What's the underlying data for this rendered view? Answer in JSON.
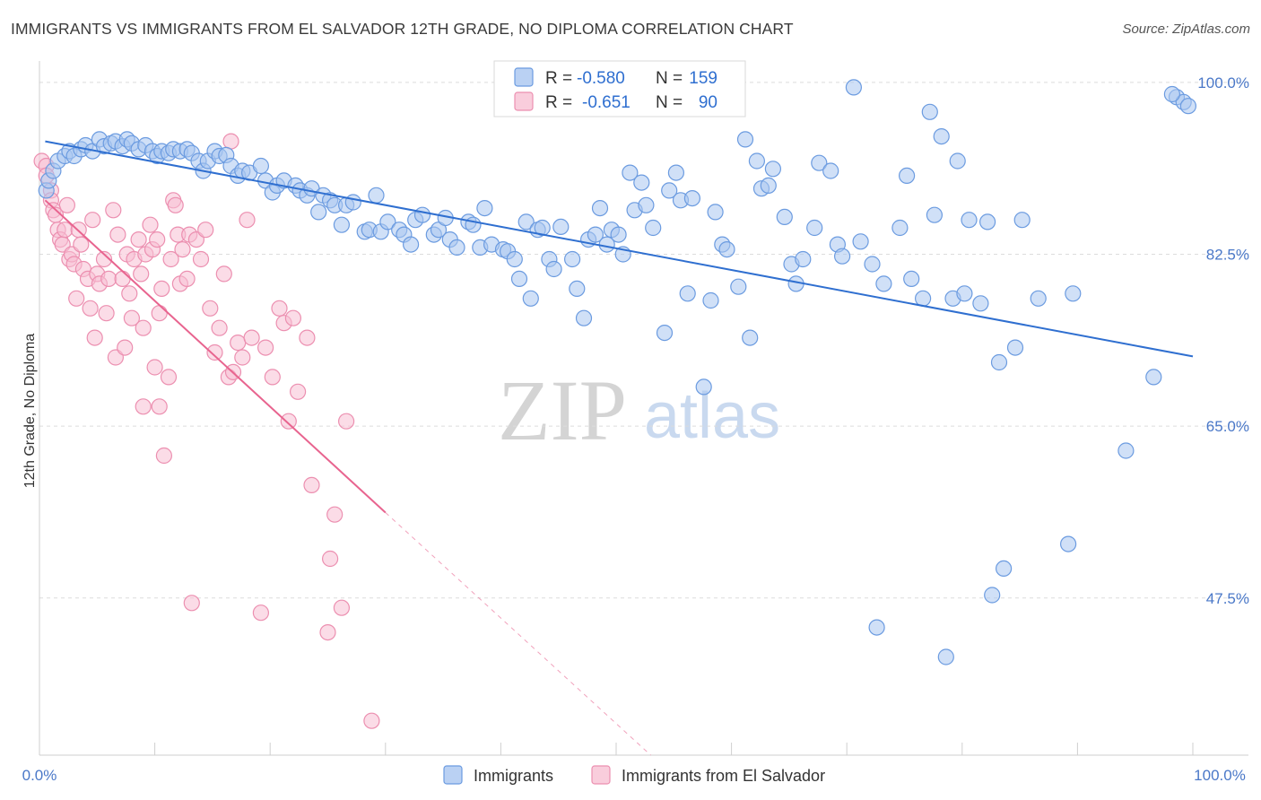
{
  "header": {
    "title": "IMMIGRANTS VS IMMIGRANTS FROM EL SALVADOR 12TH GRADE, NO DIPLOMA CORRELATION CHART",
    "source": "Source: ZipAtlas.com"
  },
  "watermark": {
    "zip": "ZIP",
    "atlas": "atlas"
  },
  "legend": {
    "r_label": "R =",
    "n_label": "N =",
    "rows": [
      {
        "r": "-0.580",
        "n": "159"
      },
      {
        "r": "-0.651",
        "n": "90"
      }
    ]
  },
  "colors": {
    "blue_fill": "#a9c6f0",
    "blue_stroke": "#6b9be0",
    "blue_line": "#2f6fd0",
    "pink_fill": "#f7c0d3",
    "pink_stroke": "#ec8fb0",
    "pink_line": "#e8648f",
    "tick_text": "#4a78c8",
    "grid": "#dcdcdc"
  },
  "chart_data": {
    "type": "scatter",
    "title": "IMMIGRANTS VS IMMIGRANTS FROM EL SALVADOR 12TH GRADE, NO DIPLOMA CORRELATION CHART",
    "xlabel": "",
    "ylabel": "12th Grade, No Diploma",
    "xlim": [
      0,
      100
    ],
    "ylim": [
      31.5,
      102
    ],
    "x_tick_labels": [
      "0.0%",
      "100.0%"
    ],
    "y_ticks": [
      47.5,
      65.0,
      82.5,
      100.0
    ],
    "y_tick_labels": [
      "47.5%",
      "65.0%",
      "82.5%",
      "100.0%"
    ],
    "grid": true,
    "legend_placement": "top-center",
    "series": [
      {
        "name": "Immigrants",
        "r": -0.58,
        "n": 159,
        "trend": {
          "x": [
            0.5,
            100
          ],
          "y": [
            94.0,
            72.1
          ]
        },
        "points": [
          [
            0.6,
            89.0
          ],
          [
            0.8,
            90.0
          ],
          [
            1.2,
            91.0
          ],
          [
            1.6,
            92.0
          ],
          [
            2.2,
            92.5
          ],
          [
            2.6,
            93.0
          ],
          [
            3.0,
            92.5
          ],
          [
            3.6,
            93.2
          ],
          [
            4.0,
            93.6
          ],
          [
            4.6,
            93.0
          ],
          [
            5.2,
            94.2
          ],
          [
            5.6,
            93.5
          ],
          [
            6.2,
            93.8
          ],
          [
            6.6,
            94.0
          ],
          [
            7.2,
            93.5
          ],
          [
            7.6,
            94.2
          ],
          [
            8.0,
            93.8
          ],
          [
            8.6,
            93.2
          ],
          [
            9.2,
            93.6
          ],
          [
            9.8,
            93.0
          ],
          [
            10.2,
            92.5
          ],
          [
            10.6,
            93.0
          ],
          [
            11.2,
            92.8
          ],
          [
            11.6,
            93.2
          ],
          [
            12.2,
            93.0
          ],
          [
            12.8,
            93.2
          ],
          [
            13.2,
            92.8
          ],
          [
            13.8,
            92.0
          ],
          [
            14.2,
            91.0
          ],
          [
            14.6,
            92.0
          ],
          [
            15.2,
            93.0
          ],
          [
            15.6,
            92.5
          ],
          [
            16.2,
            92.6
          ],
          [
            16.6,
            91.5
          ],
          [
            17.2,
            90.5
          ],
          [
            17.6,
            91.0
          ],
          [
            18.2,
            90.8
          ],
          [
            19.2,
            91.5
          ],
          [
            19.6,
            90.0
          ],
          [
            20.2,
            88.8
          ],
          [
            20.6,
            89.5
          ],
          [
            21.2,
            90.0
          ],
          [
            22.2,
            89.5
          ],
          [
            22.6,
            89.0
          ],
          [
            23.2,
            88.5
          ],
          [
            23.6,
            89.2
          ],
          [
            24.2,
            86.8
          ],
          [
            24.6,
            88.5
          ],
          [
            25.2,
            88.0
          ],
          [
            25.6,
            87.5
          ],
          [
            26.2,
            85.5
          ],
          [
            26.6,
            87.5
          ],
          [
            27.2,
            87.8
          ],
          [
            28.2,
            84.8
          ],
          [
            28.6,
            85.0
          ],
          [
            29.2,
            88.5
          ],
          [
            29.6,
            84.8
          ],
          [
            30.2,
            85.8
          ],
          [
            31.2,
            85.0
          ],
          [
            31.6,
            84.5
          ],
          [
            32.2,
            83.5
          ],
          [
            32.6,
            86.0
          ],
          [
            33.2,
            86.5
          ],
          [
            34.2,
            84.5
          ],
          [
            34.6,
            85.0
          ],
          [
            35.2,
            86.2
          ],
          [
            35.6,
            84.0
          ],
          [
            36.2,
            83.2
          ],
          [
            37.2,
            85.8
          ],
          [
            37.6,
            85.5
          ],
          [
            38.2,
            83.2
          ],
          [
            38.6,
            87.2
          ],
          [
            39.2,
            83.5
          ],
          [
            40.2,
            83.0
          ],
          [
            40.6,
            82.8
          ],
          [
            41.2,
            82.0
          ],
          [
            41.6,
            80.0
          ],
          [
            42.2,
            85.8
          ],
          [
            42.6,
            78.0
          ],
          [
            43.2,
            85.0
          ],
          [
            43.6,
            85.2
          ],
          [
            44.2,
            82.0
          ],
          [
            44.6,
            81.0
          ],
          [
            45.2,
            85.3
          ],
          [
            46.2,
            82.0
          ],
          [
            46.6,
            79.0
          ],
          [
            47.2,
            76.0
          ],
          [
            47.6,
            84.0
          ],
          [
            48.2,
            84.5
          ],
          [
            48.6,
            87.2
          ],
          [
            49.2,
            83.5
          ],
          [
            49.6,
            85.0
          ],
          [
            50.2,
            84.5
          ],
          [
            50.6,
            82.5
          ],
          [
            51.2,
            90.8
          ],
          [
            51.6,
            87.0
          ],
          [
            52.2,
            89.8
          ],
          [
            52.6,
            87.5
          ],
          [
            53.2,
            85.2
          ],
          [
            54.2,
            74.5
          ],
          [
            54.6,
            89.0
          ],
          [
            55.2,
            90.8
          ],
          [
            55.6,
            88.0
          ],
          [
            56.2,
            78.5
          ],
          [
            56.6,
            88.2
          ],
          [
            57.6,
            69.0
          ],
          [
            58.2,
            77.8
          ],
          [
            58.6,
            86.8
          ],
          [
            59.2,
            83.5
          ],
          [
            59.6,
            83.0
          ],
          [
            60.6,
            79.2
          ],
          [
            61.2,
            94.2
          ],
          [
            61.6,
            74.0
          ],
          [
            62.2,
            92.0
          ],
          [
            62.6,
            89.2
          ],
          [
            63.2,
            89.5
          ],
          [
            63.6,
            91.2
          ],
          [
            64.6,
            86.3
          ],
          [
            65.2,
            81.5
          ],
          [
            65.6,
            79.5
          ],
          [
            66.2,
            82.0
          ],
          [
            67.2,
            85.2
          ],
          [
            67.6,
            91.8
          ],
          [
            68.6,
            91.0
          ],
          [
            69.2,
            83.5
          ],
          [
            69.6,
            82.3
          ],
          [
            70.6,
            99.5
          ],
          [
            71.2,
            83.8
          ],
          [
            72.2,
            81.5
          ],
          [
            72.6,
            44.5
          ],
          [
            73.2,
            79.5
          ],
          [
            74.6,
            85.2
          ],
          [
            75.2,
            90.5
          ],
          [
            75.6,
            80.0
          ],
          [
            76.6,
            78.0
          ],
          [
            77.2,
            97.0
          ],
          [
            77.6,
            86.5
          ],
          [
            78.2,
            94.5
          ],
          [
            78.6,
            41.5
          ],
          [
            79.2,
            78.0
          ],
          [
            79.6,
            92.0
          ],
          [
            80.2,
            78.5
          ],
          [
            80.6,
            86.0
          ],
          [
            81.6,
            77.5
          ],
          [
            82.2,
            85.8
          ],
          [
            82.6,
            47.8
          ],
          [
            83.2,
            71.5
          ],
          [
            83.6,
            50.5
          ],
          [
            84.6,
            73.0
          ],
          [
            85.2,
            86.0
          ],
          [
            86.6,
            78.0
          ],
          [
            89.2,
            53.0
          ],
          [
            89.6,
            78.5
          ],
          [
            94.2,
            62.5
          ],
          [
            96.6,
            70.0
          ],
          [
            98.6,
            98.5
          ],
          [
            99.2,
            98.0
          ],
          [
            99.6,
            97.6
          ],
          [
            98.2,
            98.8
          ]
        ]
      },
      {
        "name": "Immigrants from El Salvador",
        "r": -0.651,
        "n": 90,
        "trend": {
          "x": [
            0.5,
            30
          ],
          "y": [
            88.0,
            56.2
          ]
        },
        "trend_dashed": {
          "x": [
            30,
            53
          ],
          "y": [
            56.2,
            31.5
          ]
        },
        "points": [
          [
            0.2,
            92.0
          ],
          [
            0.6,
            91.5
          ],
          [
            0.6,
            90.5
          ],
          [
            1.0,
            89.0
          ],
          [
            1.0,
            88.0
          ],
          [
            1.2,
            87.0
          ],
          [
            1.4,
            86.5
          ],
          [
            1.6,
            85.0
          ],
          [
            1.8,
            84.0
          ],
          [
            2.0,
            83.5
          ],
          [
            2.2,
            85.0
          ],
          [
            2.4,
            87.5
          ],
          [
            2.6,
            82.0
          ],
          [
            2.8,
            82.5
          ],
          [
            3.0,
            81.5
          ],
          [
            3.2,
            78.0
          ],
          [
            3.4,
            85.0
          ],
          [
            3.6,
            83.5
          ],
          [
            3.8,
            81.0
          ],
          [
            4.2,
            80.0
          ],
          [
            4.4,
            77.0
          ],
          [
            4.6,
            86.0
          ],
          [
            4.8,
            74.0
          ],
          [
            5.0,
            80.5
          ],
          [
            5.2,
            79.5
          ],
          [
            5.6,
            82.0
          ],
          [
            5.8,
            76.5
          ],
          [
            6.0,
            80.0
          ],
          [
            6.4,
            87.0
          ],
          [
            6.6,
            72.0
          ],
          [
            6.8,
            84.5
          ],
          [
            7.2,
            80.0
          ],
          [
            7.4,
            73.0
          ],
          [
            7.6,
            82.5
          ],
          [
            7.8,
            78.5
          ],
          [
            8.0,
            76.0
          ],
          [
            8.2,
            82.0
          ],
          [
            8.6,
            84.0
          ],
          [
            8.8,
            80.5
          ],
          [
            9.0,
            75.0
          ],
          [
            9.2,
            82.5
          ],
          [
            9.6,
            85.5
          ],
          [
            9.8,
            83.0
          ],
          [
            10.0,
            71.0
          ],
          [
            10.2,
            84.0
          ],
          [
            10.4,
            76.5
          ],
          [
            10.6,
            79.0
          ],
          [
            10.8,
            62.0
          ],
          [
            11.2,
            70.0
          ],
          [
            11.4,
            82.0
          ],
          [
            11.6,
            88.0
          ],
          [
            11.8,
            87.5
          ],
          [
            12.0,
            84.5
          ],
          [
            12.2,
            79.5
          ],
          [
            12.4,
            83.0
          ],
          [
            12.8,
            80.0
          ],
          [
            13.0,
            84.5
          ],
          [
            13.2,
            47.0
          ],
          [
            13.6,
            84.0
          ],
          [
            14.0,
            82.0
          ],
          [
            14.4,
            85.0
          ],
          [
            14.8,
            77.0
          ],
          [
            15.2,
            72.5
          ],
          [
            15.6,
            75.0
          ],
          [
            16.0,
            80.5
          ],
          [
            16.4,
            70.0
          ],
          [
            16.6,
            94.0
          ],
          [
            16.8,
            70.5
          ],
          [
            17.2,
            73.5
          ],
          [
            17.6,
            72.0
          ],
          [
            18.0,
            86.0
          ],
          [
            18.4,
            74.0
          ],
          [
            19.2,
            46.0
          ],
          [
            19.6,
            73.0
          ],
          [
            20.2,
            70.0
          ],
          [
            20.8,
            77.0
          ],
          [
            21.2,
            75.5
          ],
          [
            21.6,
            65.5
          ],
          [
            22.0,
            76.0
          ],
          [
            22.4,
            68.5
          ],
          [
            23.2,
            74.0
          ],
          [
            23.6,
            59.0
          ],
          [
            25.2,
            51.5
          ],
          [
            25.6,
            56.0
          ],
          [
            26.2,
            46.5
          ],
          [
            28.8,
            35.0
          ],
          [
            26.6,
            65.5
          ],
          [
            10.4,
            67.0
          ],
          [
            9.0,
            67.0
          ],
          [
            25.0,
            44.0
          ]
        ]
      }
    ]
  },
  "bottom_legend": {
    "items": [
      {
        "label": "Immigrants"
      },
      {
        "label": "Immigrants from El Salvador"
      }
    ]
  },
  "ylabel": "12th Grade, No Diploma"
}
